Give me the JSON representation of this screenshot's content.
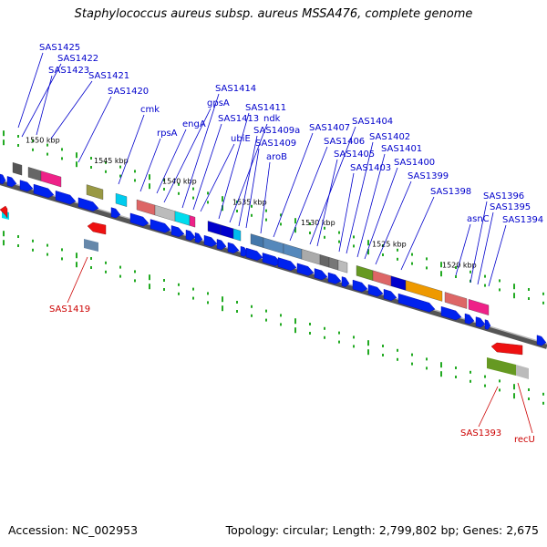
{
  "title": "Staphylococcus aureus subsp. aureus MSSA476, complete genome",
  "footer": {
    "accession": "Accession: NC_002953",
    "summary": "Topology: circular; Length: 2,799,802 bp; Genes: 2,675"
  },
  "colors": {
    "forward_label": "#0000cc",
    "reverse_label": "#cc0000",
    "backbone": "#888888",
    "tick": "#22aa22"
  },
  "kbp_labels": [
    "1550 kbp",
    "1545 kbp",
    "1540 kbp",
    "1535 kbp",
    "1530 kbp",
    "1525 kbp",
    "1520 kbp"
  ],
  "forward_genes": [
    "SAS1425",
    "SAS1422",
    "SAS1423",
    "SAS1421",
    "SAS1420",
    "cmk",
    "rpsA",
    "engA",
    "gpsA",
    "SAS1414",
    "SAS1413",
    "ubiE",
    "SAS1411",
    "ndk",
    "SAS1409a",
    "SAS1409",
    "aroB",
    "SAS1407",
    "SAS1406",
    "SAS1404",
    "SAS1405",
    "SAS1403",
    "SAS1402",
    "SAS1401",
    "SAS1400",
    "SAS1399",
    "SAS1398",
    "asnC",
    "SAS1396",
    "SAS1395",
    "SAS1394"
  ],
  "reverse_genes": [
    "SAS1419",
    "SAS1393",
    "recU"
  ]
}
